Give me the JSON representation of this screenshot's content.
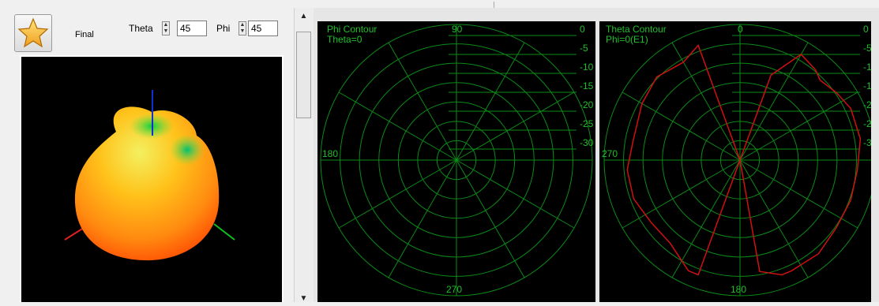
{
  "controls": {
    "final_label": "Final",
    "theta_label": "Theta",
    "theta_value": "45",
    "phi_label": "Phi",
    "phi_value": "45"
  },
  "icons": {
    "favorite": "star-icon",
    "scroll_up": "arrow-up-icon",
    "scroll_down": "arrow-down-icon"
  },
  "colors": {
    "grid": "#0b8a17",
    "grid_text": "#1fbf2a",
    "trace": "#d01010",
    "panel_bg": "#000000"
  },
  "phi_plot": {
    "title": "Phi Contour",
    "subtitle": "Theta=0",
    "angle_labels": {
      "top": "90",
      "left": "180",
      "bottom": "270"
    },
    "db_labels": [
      "0",
      "-5",
      "-10",
      "-15",
      "-20",
      "-25",
      "-30"
    ]
  },
  "theta_plot": {
    "title": "Theta Contour",
    "subtitle": "Phi=0(E1)",
    "angle_labels": {
      "top": "0",
      "left": "270",
      "bottom": "180"
    },
    "db_labels": [
      "0",
      "-5",
      "-10",
      "-15",
      "-20",
      "-25",
      "-30"
    ]
  },
  "chart_data": [
    {
      "type": "polar",
      "title": "Phi Contour",
      "subtitle": "Theta=0",
      "r_ticks": [
        0,
        -5,
        -10,
        -15,
        -20,
        -25,
        -30
      ],
      "angle_ticks": [
        90,
        180,
        270
      ],
      "series": []
    },
    {
      "type": "polar",
      "title": "Theta Contour",
      "subtitle": "Phi=0(E1)",
      "r_ticks": [
        0,
        -5,
        -10,
        -15,
        -20,
        -25,
        -30
      ],
      "angle_ticks": [
        0,
        270,
        180
      ],
      "series": [
        {
          "angle_deg": [
            0,
            10,
            20,
            30,
            40,
            45,
            55,
            65,
            80,
            95,
            110,
            125,
            140,
            155,
            160,
            170,
            180,
            190,
            200,
            205,
            220,
            235,
            250,
            265,
            280,
            300,
            315,
            330,
            340,
            350
          ],
          "db": [
            -30,
            -30,
            -10,
            -3,
            -4,
            -5,
            -4,
            -3,
            -3,
            -4,
            -4,
            -4,
            -3,
            -3,
            -3,
            -5,
            -30,
            -30,
            -3,
            -3,
            -6,
            -6,
            -5,
            -5,
            -6,
            -5,
            -4,
            -5,
            -3,
            -30
          ]
        }
      ]
    }
  ]
}
